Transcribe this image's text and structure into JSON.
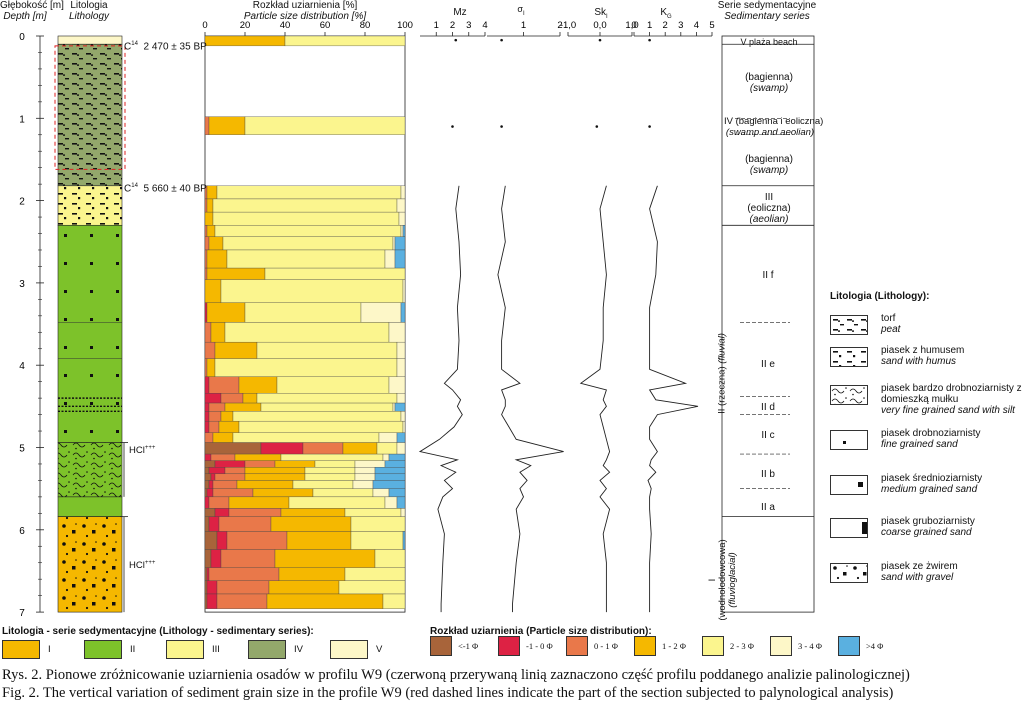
{
  "headers": {
    "depth": "Głębokość [m]",
    "depth_en": "Depth [m]",
    "lithology": "Litologia",
    "lithology_en": "Lithology",
    "psd": "Rozkład uziarnienia [%]",
    "psd_en": "Particle size distribution [%]",
    "mz": "Mz",
    "sigma": "σ",
    "sigma_sub": "I",
    "sk": "Sk",
    "sk_sub": "I",
    "kg": "K",
    "kg_sub": "G",
    "series": "Serie sedymentacyjne",
    "series_en": "Sedimentary series"
  },
  "depth_ticks": [
    "0",
    "1",
    "2",
    "3",
    "4",
    "5",
    "6",
    "7"
  ],
  "psd_ticks": [
    "0",
    "20",
    "40",
    "60",
    "80",
    "100"
  ],
  "mz_ticks": [
    "1",
    "2",
    "3",
    "4"
  ],
  "sigma_ticks": [
    "1",
    "2"
  ],
  "sk_ticks": [
    "-1,0",
    "0,0",
    "1,0"
  ],
  "kg_ticks": [
    "0",
    "1",
    "2",
    "3",
    "4",
    "5"
  ],
  "dates": [
    {
      "label": "C",
      "sup": "14",
      "value": "2 470  ± 35 BP"
    },
    {
      "label": "C",
      "sup": "14",
      "value": "5 660  ± 40 BP"
    }
  ],
  "hcl": [
    {
      "label": "HCl",
      "sup": "+++"
    },
    {
      "label": "HCl",
      "sup": "+++"
    }
  ],
  "series": [
    {
      "lines": [
        "V plaża beach"
      ]
    },
    {
      "lines": [
        "(bagienna)",
        "(swamp)"
      ]
    },
    {
      "lines": [
        "IV (bagienna i eoliczna)",
        "(swamp and aeolian)"
      ]
    },
    {
      "lines": [
        "(bagienna)",
        "(swamp)"
      ]
    },
    {
      "lines": [
        "III",
        "(eoliczna)",
        "(aeolian)"
      ]
    },
    {
      "lines": [
        "II f"
      ]
    },
    {
      "lines": [
        "II e"
      ]
    },
    {
      "lines": [
        "II d"
      ]
    },
    {
      "lines": [
        "II c"
      ]
    },
    {
      "lines": [
        "II b"
      ]
    },
    {
      "lines": [
        "II a"
      ]
    }
  ],
  "series_II_label": "II (rzeczna)",
  "series_II_label_en": "(fluvial)",
  "series_I_label": "I",
  "series_I_label_pl": "(wodnolodowcowa)",
  "series_I_label_en": "(fluvioglacial)",
  "lithology_legend": {
    "title": "Litologia (Lithology):",
    "items": [
      {
        "pl": "torf",
        "en": "peat"
      },
      {
        "pl": "piasek z humusem",
        "en": "sand with humus"
      },
      {
        "pl": "piasek bardzo drobnoziarnisty z domieszką mułku",
        "en": "very fine grained sand with silt"
      },
      {
        "pl": "piasek drobnoziarnisty",
        "en": "fine grained sand"
      },
      {
        "pl": "piasek średnioziarnisty",
        "en": "medium grained sand"
      },
      {
        "pl": "piasek gruboziarnisty",
        "en": "coarse grained sand"
      },
      {
        "pl": "piasek ze żwirem",
        "en": "sand with gravel"
      }
    ]
  },
  "series_legend": {
    "title": "Litologia - serie sedymentacyjne (Lithology - sedimentary series):",
    "items": [
      {
        "label": "I",
        "color": "#f5b800"
      },
      {
        "label": "II",
        "color": "#7dc22a"
      },
      {
        "label": "III",
        "color": "#fbf58e"
      },
      {
        "label": "IV",
        "color": "#93a86b"
      },
      {
        "label": "V",
        "color": "#fdf7c8"
      }
    ]
  },
  "psd_legend": {
    "title": "Rozkład uziarnienia (Particle size distribution):",
    "items": [
      {
        "label": "<-1 Φ",
        "color": "#a8643a"
      },
      {
        "label": "-1 - 0 Φ",
        "color": "#dd2244"
      },
      {
        "label": "0 - 1 Φ",
        "color": "#e9784a"
      },
      {
        "label": "1 - 2 Φ",
        "color": "#f5b800"
      },
      {
        "label": "2 - 3 Φ",
        "color": "#fbf58e"
      },
      {
        "label": "3 - 4 Φ",
        "color": "#fdf7c8"
      },
      {
        "label": ">4 Φ",
        "color": "#5ab0e0"
      }
    ]
  },
  "caption_pl": "Rys. 2. Pionowe zróżnicowanie uziarnienia osadów w profilu W9 (czerwoną przerywaną linią zaznaczono część profilu poddanego analizie palinologicznej)",
  "caption_en": "Fig. 2. The vertical variation of sediment grain size in the profile W9 (red dashed lines indicate the part of the section subjected to palynological analysis)",
  "chart_data": {
    "type": "bar",
    "orientation": "horizontal-stacked",
    "title": "Rozkład uziarnienia [%] / Particle size distribution [%]",
    "xlabel": "",
    "ylabel": "Głębokość [m] / Depth [m]",
    "xlim": [
      0,
      100
    ],
    "ylim": [
      0,
      7
    ],
    "classes": [
      "<-1 Φ",
      "-1 - 0 Φ",
      "0 - 1 Φ",
      "1 - 2 Φ",
      "2 - 3 Φ",
      "3 - 4 Φ",
      ">4 Φ"
    ],
    "samples": [
      {
        "top": 0.0,
        "bottom": 0.12,
        "values": [
          0,
          0,
          0,
          40,
          60,
          0,
          0
        ]
      },
      {
        "top": 0.98,
        "bottom": 1.2,
        "values": [
          0,
          0,
          2,
          18,
          80,
          0,
          0
        ]
      },
      {
        "top": 1.82,
        "bottom": 1.98,
        "values": [
          0,
          0,
          1,
          5,
          92,
          2,
          0
        ]
      },
      {
        "top": 1.98,
        "bottom": 2.14,
        "values": [
          0,
          0,
          1,
          3,
          92,
          4,
          0
        ]
      },
      {
        "top": 2.14,
        "bottom": 2.3,
        "values": [
          0,
          0,
          0,
          4,
          93,
          3,
          0
        ]
      },
      {
        "top": 2.3,
        "bottom": 2.44,
        "values": [
          0,
          0,
          1,
          4,
          93,
          1,
          1
        ]
      },
      {
        "top": 2.44,
        "bottom": 2.6,
        "values": [
          0,
          0,
          2,
          7,
          85,
          1,
          5
        ]
      },
      {
        "top": 2.6,
        "bottom": 2.82,
        "values": [
          0,
          0,
          1,
          10,
          79,
          5,
          5
        ]
      },
      {
        "top": 2.82,
        "bottom": 2.96,
        "values": [
          0,
          0,
          1,
          29,
          70,
          0,
          0
        ]
      },
      {
        "top": 2.96,
        "bottom": 3.24,
        "values": [
          0,
          0,
          0,
          8,
          91,
          1,
          0
        ]
      },
      {
        "top": 3.24,
        "bottom": 3.48,
        "values": [
          0,
          1,
          0,
          19,
          58,
          20,
          2
        ]
      },
      {
        "top": 3.48,
        "bottom": 3.72,
        "values": [
          0,
          0,
          3,
          7,
          82,
          8,
          0
        ]
      },
      {
        "top": 3.72,
        "bottom": 3.92,
        "values": [
          0,
          0,
          5,
          21,
          70,
          4,
          0
        ]
      },
      {
        "top": 3.92,
        "bottom": 4.14,
        "values": [
          0,
          0,
          1,
          4,
          91,
          4,
          0
        ]
      },
      {
        "top": 4.14,
        "bottom": 4.34,
        "values": [
          0,
          2,
          15,
          19,
          56,
          8,
          0
        ]
      },
      {
        "top": 4.34,
        "bottom": 4.46,
        "values": [
          0,
          8,
          11,
          7,
          70,
          4,
          0
        ]
      },
      {
        "top": 4.46,
        "bottom": 4.56,
        "values": [
          0,
          2,
          8,
          18,
          66,
          1,
          5
        ]
      },
      {
        "top": 4.56,
        "bottom": 4.68,
        "values": [
          0,
          2,
          6,
          6,
          84,
          2,
          0
        ]
      },
      {
        "top": 4.68,
        "bottom": 4.82,
        "values": [
          0,
          2,
          5,
          10,
          82,
          1,
          0
        ]
      },
      {
        "top": 4.82,
        "bottom": 4.94,
        "values": [
          0,
          0,
          4,
          10,
          73,
          9,
          4
        ]
      },
      {
        "top": 4.94,
        "bottom": 5.08,
        "values": [
          28,
          21,
          20,
          17,
          10,
          4,
          0
        ]
      },
      {
        "top": 5.08,
        "bottom": 5.16,
        "values": [
          0,
          3,
          12,
          23,
          51,
          3,
          8
        ]
      },
      {
        "top": 5.16,
        "bottom": 5.24,
        "values": [
          5,
          15,
          15,
          20,
          20,
          15,
          10
        ]
      },
      {
        "top": 5.24,
        "bottom": 5.32,
        "values": [
          2,
          8,
          10,
          30,
          25,
          10,
          15
        ]
      },
      {
        "top": 5.32,
        "bottom": 5.4,
        "values": [
          3,
          2,
          15,
          30,
          25,
          10,
          15
        ]
      },
      {
        "top": 5.4,
        "bottom": 5.5,
        "values": [
          2,
          2,
          12,
          28,
          30,
          10,
          16
        ]
      },
      {
        "top": 5.5,
        "bottom": 5.6,
        "values": [
          1,
          3,
          20,
          30,
          30,
          8,
          8
        ]
      },
      {
        "top": 5.6,
        "bottom": 5.74,
        "values": [
          0,
          2,
          10,
          30,
          48,
          6,
          4
        ]
      },
      {
        "top": 5.74,
        "bottom": 5.84,
        "values": [
          5,
          7,
          26,
          32,
          28,
          2,
          0
        ]
      },
      {
        "top": 5.84,
        "bottom": 6.02,
        "values": [
          2,
          5,
          26,
          40,
          27,
          0,
          0
        ]
      },
      {
        "top": 6.02,
        "bottom": 6.24,
        "values": [
          6,
          5,
          30,
          32,
          26,
          0,
          1
        ]
      },
      {
        "top": 6.24,
        "bottom": 6.46,
        "values": [
          3,
          5,
          27,
          50,
          15,
          0,
          0
        ]
      },
      {
        "top": 6.46,
        "bottom": 6.62,
        "values": [
          1,
          1,
          35,
          33,
          30,
          0,
          0
        ]
      },
      {
        "top": 6.62,
        "bottom": 6.78,
        "values": [
          1,
          5,
          26,
          35,
          33,
          0,
          0
        ]
      },
      {
        "top": 6.78,
        "bottom": 6.96,
        "values": [
          1,
          5,
          25,
          58,
          11,
          0,
          0
        ]
      }
    ],
    "indices": {
      "note": "Graphic grain-size parameters vs depth",
      "depth": [
        0.05,
        1.1,
        1.82,
        2.1,
        2.5,
        2.9,
        3.3,
        3.7,
        4.05,
        4.22,
        4.3,
        4.42,
        4.5,
        4.6,
        4.75,
        4.9,
        5.05,
        5.15,
        5.22,
        5.3,
        5.4,
        5.5,
        5.6,
        5.75,
        6.05,
        6.4,
        6.9
      ],
      "Mz": [
        2.2,
        2.0,
        2.4,
        2.2,
        2.4,
        2.5,
        2.3,
        2.4,
        2.3,
        1.5,
        2.0,
        2.5,
        2.3,
        2.6,
        2.1,
        1.2,
        0.0,
        2.3,
        1.3,
        2.2,
        1.5,
        2.0,
        1.4,
        1.1,
        1.5,
        1.4,
        1.3
      ],
      "sigma": [
        0.4,
        0.4,
        0.5,
        0.4,
        0.5,
        0.3,
        0.5,
        0.4,
        0.4,
        0.9,
        0.4,
        0.5,
        0.5,
        0.4,
        0.6,
        0.8,
        2.1,
        0.8,
        1.2,
        0.9,
        1.1,
        0.9,
        1.0,
        0.8,
        0.9,
        0.8,
        0.7
      ],
      "Sk": [
        0.0,
        -0.1,
        0.2,
        0.0,
        0.1,
        0.2,
        0.1,
        0.1,
        0.0,
        -0.6,
        0.2,
        0.1,
        0.2,
        0.0,
        0.1,
        0.2,
        0.3,
        0.2,
        0.1,
        0.3,
        0.0,
        0.2,
        0.0,
        0.3,
        0.1,
        0.2,
        0.2
      ],
      "KG": [
        1.0,
        1.0,
        1.5,
        1.0,
        1.5,
        1.4,
        1.0,
        1.0,
        1.0,
        3.3,
        1.0,
        1.4,
        4.1,
        1.5,
        1.0,
        1.0,
        1.5,
        1.1,
        1.0,
        1.4,
        0.9,
        1.1,
        1.0,
        1.0,
        1.1,
        1.0,
        1.0
      ]
    }
  }
}
